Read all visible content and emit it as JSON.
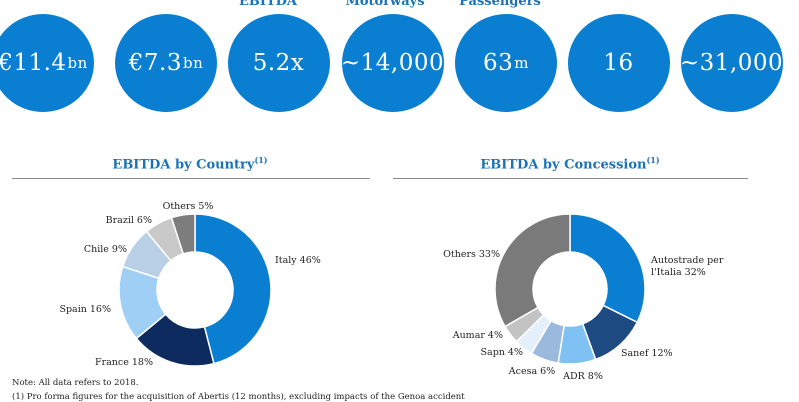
{
  "kpi_labels": {
    "ebitda": "EBITDA",
    "motorways": "Motorways",
    "passengers": "Passengers"
  },
  "kpis": [
    {
      "value": "€11.4",
      "unit": "bn"
    },
    {
      "value": "€7.3",
      "unit": "bn"
    },
    {
      "value": "5.2x",
      "unit": ""
    },
    {
      "value": "~14,000",
      "unit": ""
    },
    {
      "value": "63",
      "unit": "m"
    },
    {
      "value": "16",
      "unit": ""
    },
    {
      "value": "~31,000",
      "unit": ""
    }
  ],
  "charts": {
    "country": {
      "title": "EBITDA by Country",
      "footnote_marker": "(1)"
    },
    "concession": {
      "title": "EBITDA by Concession",
      "footnote_marker": "(1)"
    }
  },
  "chart_data": [
    {
      "type": "pie",
      "title": "EBITDA by Country",
      "slices": [
        {
          "name": "Italy",
          "value": 46,
          "label": "Italy 46%",
          "color": "#0a7fd1"
        },
        {
          "name": "France",
          "value": 18,
          "label": "France 18%",
          "color": "#0d2b5e"
        },
        {
          "name": "Spain",
          "value": 16,
          "label": "Spain 16%",
          "color": "#9fcff4"
        },
        {
          "name": "Chile",
          "value": 9,
          "label": "Chile 9%",
          "color": "#b8cfe6"
        },
        {
          "name": "Brazil",
          "value": 6,
          "label": "Brazil 6%",
          "color": "#c9c9c9"
        },
        {
          "name": "Others",
          "value": 5,
          "label": "Others 5%",
          "color": "#7d7d7d"
        }
      ]
    },
    {
      "type": "pie",
      "title": "EBITDA by Concession",
      "slices": [
        {
          "name": "Autostrade per l'Italia",
          "value": 32,
          "label": [
            "Autostrade per",
            "l'Italia 32%"
          ],
          "color": "#0a7fd1"
        },
        {
          "name": "Sanef",
          "value": 12,
          "label": "Sanef 12%",
          "color": "#1e4a82"
        },
        {
          "name": "ADR",
          "value": 8,
          "label": "ADR 8%",
          "color": "#7ec1f2"
        },
        {
          "name": "Acesa",
          "value": 6,
          "label": "Acesa 6%",
          "color": "#9ab9dc"
        },
        {
          "name": "Sapn",
          "value": 4,
          "label": "Sapn 4%",
          "color": "#e3effa"
        },
        {
          "name": "Aumar",
          "value": 4,
          "label": "Aumar 4%",
          "color": "#c3c3c3"
        },
        {
          "name": "Others",
          "value": 33,
          "label": "Others 33%",
          "color": "#7a7a7a"
        }
      ]
    }
  ],
  "notes": [
    "Note: All data refers to 2018.",
    "(1) Pro forma figures for the acquisition of Abertis (12 months), excluding impacts of the Genoa accident"
  ]
}
